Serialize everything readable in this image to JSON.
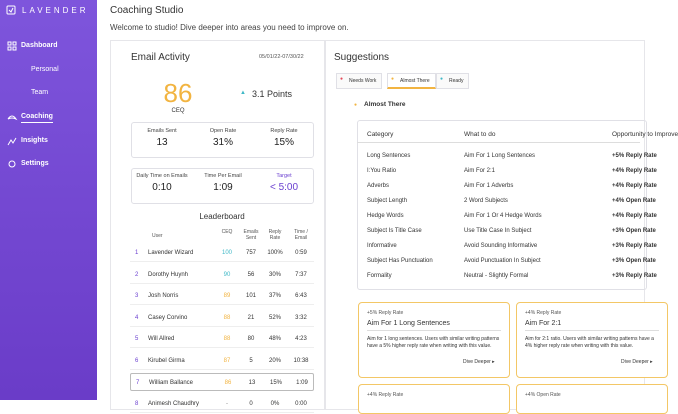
{
  "sidebar": {
    "logo": "LAVENDER",
    "nav": [
      "Dashboard",
      "Personal",
      "Team",
      "Coaching",
      "Insights",
      "Settings"
    ]
  },
  "header": {
    "title": "Coaching Studio",
    "subtitle": "Welcome to studio! Dive deeper into areas you need to improve on."
  },
  "email_activity": {
    "title": "Email Activity",
    "date_range": "05/01/22-07/30/22",
    "ceq": {
      "value": "86",
      "label": "CEQ"
    },
    "change": "3.1 Points",
    "stats": [
      {
        "label": "Emails Sent",
        "value": "13"
      },
      {
        "label": "Open Rate",
        "value": "31%"
      },
      {
        "label": "Reply Rate",
        "value": "15%"
      }
    ],
    "times": [
      {
        "label": "Daily Time on Emails",
        "value": "0:10"
      },
      {
        "label": "Time Per Email",
        "value": "1:09"
      },
      {
        "label": "Target",
        "value": "< 5:00"
      }
    ],
    "leaderboard": {
      "title": "Leaderboard",
      "columns": [
        "User",
        "CEQ",
        "Emails Sent",
        "Reply Rate",
        "Time / Email"
      ],
      "rows": [
        [
          "1",
          "Lavender Wizard",
          "100",
          "757",
          "100%",
          "0:59"
        ],
        [
          "2",
          "Dorothy Huynh",
          "90",
          "56",
          "30%",
          "7:37"
        ],
        [
          "3",
          "Josh Norris",
          "89",
          "101",
          "37%",
          "6:43"
        ],
        [
          "4",
          "Casey Corvino",
          "88",
          "21",
          "52%",
          "3:32"
        ],
        [
          "5",
          "Will Allred",
          "88",
          "80",
          "48%",
          "4:23"
        ],
        [
          "6",
          "Kirubel Girma",
          "87",
          "5",
          "20%",
          "10:38"
        ],
        [
          "7",
          "William Ballance",
          "86",
          "13",
          "15%",
          "1:09"
        ],
        [
          "8",
          "Animesh Chaudhry",
          "-",
          "0",
          "0%",
          "0:00"
        ]
      ]
    }
  },
  "suggestions": {
    "title": "Suggestions",
    "tabs": [
      "Needs Work",
      "Almost There",
      "Ready"
    ],
    "section": "Almost There",
    "table": {
      "columns": [
        "Category",
        "What to do",
        "Opportunity to Improve"
      ],
      "rows": [
        [
          "Long Sentences",
          "Aim For 1 Long Sentences",
          "+5% Reply Rate"
        ],
        [
          "I:You Ratio",
          "Aim For 2:1",
          "+4% Reply Rate"
        ],
        [
          "Adverbs",
          "Aim For 1 Adverbs",
          "+4% Reply Rate"
        ],
        [
          "Subject Length",
          "2 Word Subjects",
          "+4% Open Rate"
        ],
        [
          "Hedge Words",
          "Aim For 1 Or 4 Hedge Words",
          "+4% Reply Rate"
        ],
        [
          "Subject Is Title Case",
          "Use Title Case In Subject",
          "+3% Open Rate"
        ],
        [
          "Informative",
          "Avoid Sounding Informative",
          "+3% Reply Rate"
        ],
        [
          "Subject Has Punctuation",
          "Avoid Punctuation In Subject",
          "+3% Open Rate"
        ],
        [
          "Formality",
          "Neutral - Slightly Formal",
          "+3% Reply Rate"
        ]
      ]
    },
    "cards": [
      {
        "tag": "+5% Reply Rate",
        "title": "Aim For 1 Long Sentences",
        "body": "Aim for 1 long sentences. Users with similar writing patterns have a 5% higher reply rate when writing with this value.",
        "link": "Dive Deeper"
      },
      {
        "tag": "+4% Reply Rate",
        "title": "Aim For 2:1",
        "body": "Aim for 2:1 ratio. Users with similar writing patterns have a 4% higher reply rate when writing with this value.",
        "link": "Dive Deeper"
      }
    ],
    "more_cards": [
      "+4% Reply Rate",
      "+4% Open Rate"
    ]
  }
}
